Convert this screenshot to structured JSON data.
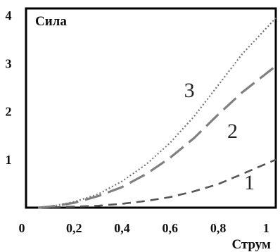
{
  "chart_data": {
    "type": "line",
    "title": "",
    "xlabel": "Струм",
    "ylabel": "Сила",
    "xlim": [
      0,
      1.04
    ],
    "ylim": [
      0,
      4.15
    ],
    "x_ticks": [
      {
        "value": 0,
        "label": "0"
      },
      {
        "value": 0.2,
        "label": "0,2"
      },
      {
        "value": 0.4,
        "label": "0,4"
      },
      {
        "value": 0.6,
        "label": "0,6"
      },
      {
        "value": 0.8,
        "label": "0,8"
      },
      {
        "value": 1.0,
        "label": "1"
      }
    ],
    "y_ticks": [
      {
        "value": 1,
        "label": "1"
      },
      {
        "value": 2,
        "label": "2"
      },
      {
        "value": 3,
        "label": "3"
      },
      {
        "value": 4,
        "label": "4"
      }
    ],
    "grid": false,
    "series": [
      {
        "label": "1",
        "color": "#555555",
        "style": "dashed-short",
        "label_at": [
          0.93,
          0.38
        ],
        "x": [
          0.05,
          0.1,
          0.2,
          0.3,
          0.4,
          0.5,
          0.6,
          0.7,
          0.8,
          0.9,
          1.04
        ],
        "y": [
          0.0,
          0.01,
          0.02,
          0.04,
          0.08,
          0.14,
          0.22,
          0.34,
          0.49,
          0.7,
          1.0
        ]
      },
      {
        "label": "2",
        "color": "#808080",
        "style": "dashed-long",
        "label_at": [
          0.86,
          1.45
        ],
        "x": [
          0.05,
          0.1,
          0.2,
          0.3,
          0.4,
          0.5,
          0.6,
          0.7,
          0.8,
          0.9,
          1.04
        ],
        "y": [
          0.0,
          0.02,
          0.1,
          0.24,
          0.43,
          0.7,
          1.04,
          1.45,
          1.94,
          2.4,
          2.95
        ]
      },
      {
        "label": "3",
        "color": "#777777",
        "style": "dotted",
        "label_at": [
          0.68,
          2.3
        ],
        "x": [
          0.05,
          0.1,
          0.2,
          0.3,
          0.4,
          0.5,
          0.6,
          0.7,
          0.8,
          0.9,
          1.04
        ],
        "y": [
          0.0,
          0.02,
          0.12,
          0.28,
          0.55,
          0.9,
          1.35,
          1.9,
          2.55,
          3.2,
          3.95
        ]
      }
    ]
  }
}
